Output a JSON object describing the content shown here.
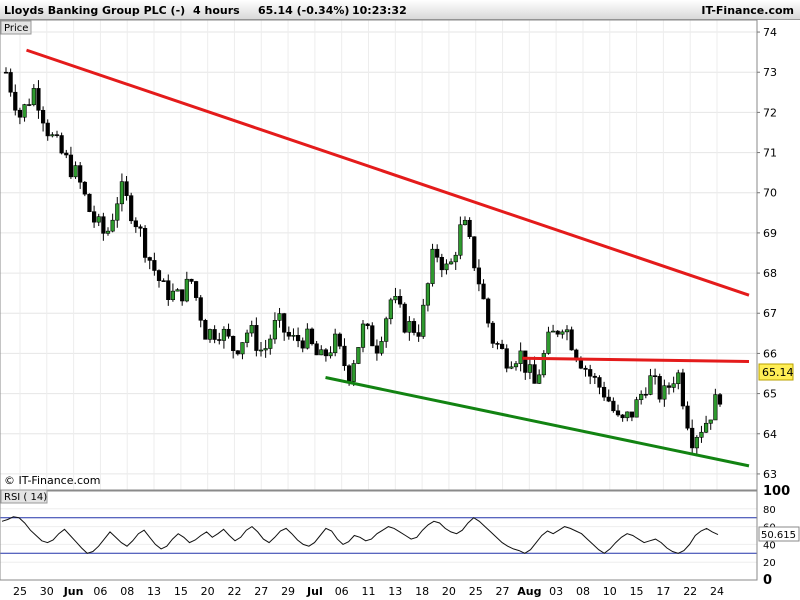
{
  "header": {
    "instrument": "Lloyds Banking Group PLC (-)",
    "timeframe": "4 hours",
    "quote": "65.14 (-0.34%)",
    "time": "10:23:32",
    "brand": "IT-Finance.com"
  },
  "price_panel": {
    "title": "Price",
    "watermark": "© IT-Finance.com",
    "last_price": "65.14"
  },
  "rsi_panel": {
    "title": "RSI ( 14)",
    "last_value": "50.615"
  },
  "chart_data": [
    {
      "type": "candlestick",
      "ylim": [
        62.6,
        74.3
      ],
      "yticks": [
        63,
        64,
        65,
        66,
        67,
        68,
        69,
        70,
        71,
        72,
        73,
        74
      ],
      "xticks": [
        "25",
        "30",
        "Jun",
        "06",
        "08",
        "13",
        "15",
        "20",
        "22",
        "27",
        "29",
        "Jul",
        "06",
        "11",
        "13",
        "18",
        "20",
        "25",
        "27",
        "Aug",
        "03",
        "08",
        "10",
        "15",
        "17",
        "22",
        "24"
      ],
      "last_price": 65.14,
      "close_path": [
        73.0,
        71.9,
        72.6,
        71.5,
        70.9,
        70.4,
        69.4,
        68.9,
        70.1,
        69.4,
        68.4,
        67.6,
        67.4,
        67.8,
        66.5,
        66.6,
        66.1,
        66.6,
        66.0,
        66.8,
        66.3,
        66.4,
        65.8,
        66.3,
        65.5,
        66.6,
        66.2,
        67.4,
        66.7,
        66.6,
        68.6,
        68.0,
        69.3,
        68.0,
        66.4,
        65.9,
        66.0,
        65.2,
        66.3,
        66.8,
        66.0,
        65.4,
        65.0,
        64.2,
        64.6,
        65.4,
        64.9,
        65.6,
        63.9,
        64.3,
        65.0
      ],
      "trendlines": [
        {
          "color": "#e41b1b",
          "from": [
            0.035,
            73.55
          ],
          "to": [
            1.0,
            67.45
          ]
        },
        {
          "color": "#e41b1b",
          "from": [
            0.69,
            65.88
          ],
          "to": [
            1.0,
            65.8
          ]
        },
        {
          "color": "#128312",
          "from": [
            0.43,
            65.4
          ],
          "to": [
            1.0,
            63.2
          ]
        }
      ]
    },
    {
      "type": "line",
      "name": "RSI (14)",
      "ylim": [
        0,
        100
      ],
      "yticks": [
        0,
        20,
        40,
        60,
        80,
        100
      ],
      "levels": [
        30,
        70
      ],
      "last_value": 50.615,
      "values": [
        66,
        68,
        71,
        70,
        64,
        56,
        50,
        44,
        42,
        45,
        52,
        57,
        50,
        43,
        36,
        30,
        32,
        38,
        46,
        54,
        48,
        42,
        38,
        44,
        52,
        56,
        48,
        40,
        35,
        38,
        46,
        52,
        48,
        42,
        45,
        50,
        54,
        48,
        52,
        57,
        50,
        44,
        48,
        56,
        60,
        54,
        46,
        42,
        48,
        55,
        58,
        52,
        45,
        40,
        38,
        42,
        50,
        58,
        55,
        46,
        40,
        43,
        50,
        48,
        44,
        46,
        52,
        56,
        60,
        58,
        54,
        50,
        46,
        48,
        56,
        62,
        66,
        64,
        58,
        54,
        52,
        56,
        64,
        70,
        66,
        60,
        54,
        48,
        42,
        38,
        35,
        33,
        30,
        34,
        42,
        50,
        55,
        52,
        56,
        60,
        58,
        55,
        52,
        46,
        40,
        34,
        30,
        35,
        42,
        48,
        52,
        50,
        46,
        42,
        44,
        46,
        42,
        36,
        32,
        30,
        33,
        40,
        50,
        55,
        58,
        54,
        51
      ]
    }
  ]
}
